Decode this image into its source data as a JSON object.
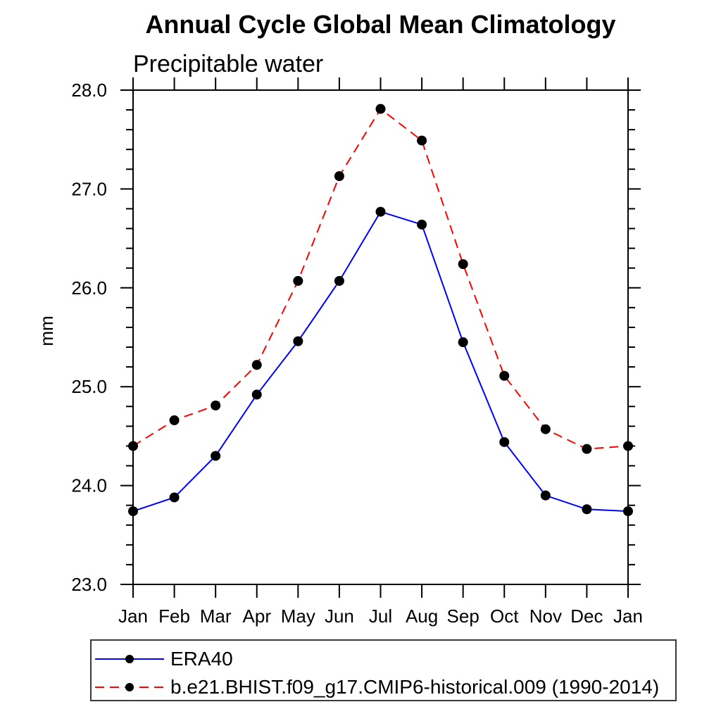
{
  "chart_data": {
    "type": "line",
    "title": "Annual Cycle Global Mean Climatology",
    "subtitle": "Precipitable water",
    "ylabel": "mm",
    "xlabel": "",
    "categories": [
      "Jan",
      "Feb",
      "Mar",
      "Apr",
      "May",
      "Jun",
      "Jul",
      "Aug",
      "Sep",
      "Oct",
      "Nov",
      "Dec",
      "Jan"
    ],
    "ylim": [
      23.0,
      28.0
    ],
    "ytick_major_step": 1.0,
    "ytick_minor_step": 0.2,
    "ytick_labels": [
      "23.0",
      "24.0",
      "25.0",
      "26.0",
      "27.0",
      "28.0"
    ],
    "grid": false,
    "legend_position": "bottom",
    "frame_color": "#000000",
    "marker_color": "#000000",
    "series": [
      {
        "name": "ERA40",
        "color": "#0000ff",
        "style": "solid",
        "marker": "dot",
        "values": [
          23.74,
          23.88,
          24.3,
          24.92,
          25.46,
          26.07,
          26.77,
          26.64,
          25.45,
          24.44,
          23.9,
          23.76,
          23.74
        ]
      },
      {
        "name": "b.e21.BHIST.f09_g17.CMIP6-historical.009 (1990-2014)",
        "color": "#ff0000",
        "style": "dashed",
        "marker": "dot",
        "values": [
          24.4,
          24.66,
          24.81,
          25.22,
          26.07,
          27.13,
          27.81,
          27.49,
          26.24,
          25.11,
          24.57,
          24.37,
          24.4
        ]
      }
    ]
  }
}
